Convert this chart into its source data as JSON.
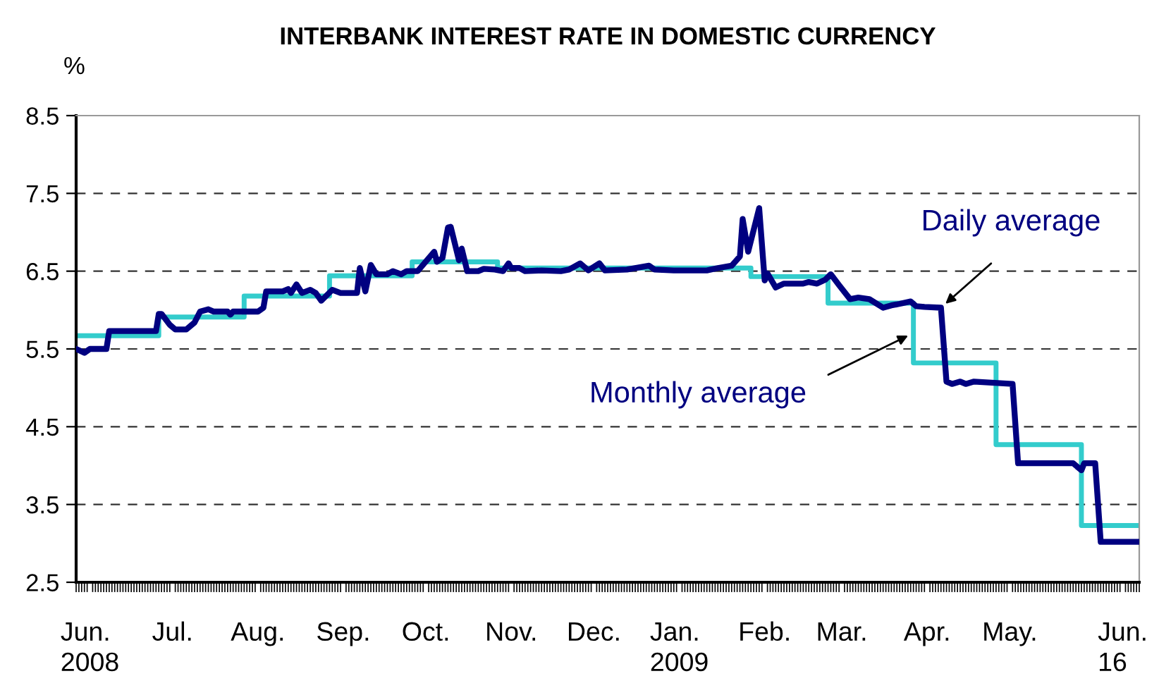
{
  "chart_data": {
    "type": "line",
    "title": "INTERBANK INTEREST RATE IN DOMESTIC CURRENCY",
    "ylabel": "%",
    "xlim": [
      "2008-06-01",
      "2009-06-22"
    ],
    "ylim": [
      2.5,
      8.5
    ],
    "yticks": [
      2.5,
      3.5,
      4.5,
      5.5,
      6.5,
      7.5,
      8.5
    ],
    "xticks": [
      {
        "value": "2008-06-06",
        "label": "Jun.\n2008"
      },
      {
        "value": "2008-07-06",
        "label": "Jul."
      },
      {
        "value": "2008-08-06",
        "label": "Aug."
      },
      {
        "value": "2008-09-06",
        "label": "Sep."
      },
      {
        "value": "2008-10-06",
        "label": "Oct."
      },
      {
        "value": "2008-11-06",
        "label": "Nov."
      },
      {
        "value": "2008-12-06",
        "label": "Dec."
      },
      {
        "value": "2009-01-06",
        "label": "Jan.\n2009"
      },
      {
        "value": "2009-02-06",
        "label": "Feb."
      },
      {
        "value": "2009-03-06",
        "label": "Mar."
      },
      {
        "value": "2009-04-06",
        "label": "Apr."
      },
      {
        "value": "2009-05-06",
        "label": "May."
      },
      {
        "value": "2009-06-16",
        "label": "Jun.\n16"
      }
    ],
    "grid": "y",
    "legend": false,
    "series": [
      {
        "name": "Monthly average",
        "type": "step",
        "color": "#33cccc",
        "x": [
          "2008-06-01",
          "2008-07-01",
          "2008-08-01",
          "2008-09-01",
          "2008-10-01",
          "2008-11-01",
          "2008-12-01",
          "2009-01-01",
          "2009-02-01",
          "2009-03-01",
          "2009-04-01",
          "2009-05-01",
          "2009-06-01",
          "2009-06-22"
        ],
        "values": [
          5.67,
          5.91,
          6.18,
          6.44,
          6.62,
          6.54,
          6.54,
          6.54,
          6.43,
          6.09,
          5.32,
          4.27,
          3.23,
          3.23
        ]
      },
      {
        "name": "Daily average",
        "color": "#000080",
        "x": [
          "2008-06-01",
          "2008-06-04",
          "2008-06-06",
          "2008-06-12",
          "2008-06-13",
          "2008-06-30",
          "2008-07-01",
          "2008-07-02",
          "2008-07-05",
          "2008-07-07",
          "2008-07-11",
          "2008-07-14",
          "2008-07-16",
          "2008-07-19",
          "2008-07-21",
          "2008-07-26",
          "2008-07-27",
          "2008-07-28",
          "2008-08-06",
          "2008-08-08",
          "2008-08-09",
          "2008-08-15",
          "2008-08-17",
          "2008-08-18",
          "2008-08-20",
          "2008-08-22",
          "2008-08-25",
          "2008-08-27",
          "2008-08-29",
          "2008-09-02",
          "2008-09-05",
          "2008-09-11",
          "2008-09-12",
          "2008-09-14",
          "2008-09-16",
          "2008-09-18",
          "2008-09-22",
          "2008-09-24",
          "2008-09-27",
          "2008-09-29",
          "2008-10-03",
          "2008-10-09",
          "2008-10-10",
          "2008-10-12",
          "2008-10-14",
          "2008-10-15",
          "2008-10-18",
          "2008-10-19",
          "2008-10-21",
          "2008-10-25",
          "2008-10-27",
          "2008-10-31",
          "2008-11-03",
          "2008-11-05",
          "2008-11-06",
          "2008-11-09",
          "2008-11-11",
          "2008-11-17",
          "2008-11-24",
          "2008-11-27",
          "2008-12-01",
          "2008-12-04",
          "2008-12-08",
          "2008-12-10",
          "2008-12-18",
          "2008-12-26",
          "2008-12-28",
          "2009-01-04",
          "2009-01-16",
          "2009-01-20",
          "2009-01-25",
          "2009-01-28",
          "2009-01-29",
          "2009-01-31",
          "2009-02-04",
          "2009-02-06",
          "2009-02-07",
          "2009-02-10",
          "2009-02-13",
          "2009-02-20",
          "2009-02-22",
          "2009-02-25",
          "2009-02-28",
          "2009-03-02",
          "2009-03-05",
          "2009-03-09",
          "2009-03-12",
          "2009-03-16",
          "2009-03-21",
          "2009-03-24",
          "2009-03-27",
          "2009-03-31",
          "2009-04-02",
          "2009-04-05",
          "2009-04-11",
          "2009-04-13",
          "2009-04-15",
          "2009-04-18",
          "2009-04-20",
          "2009-04-23",
          "2009-05-07",
          "2009-05-09",
          "2009-05-29",
          "2009-06-01",
          "2009-06-02",
          "2009-06-06",
          "2009-06-08",
          "2009-06-22"
        ],
        "values": [
          5.5,
          5.45,
          5.5,
          5.5,
          5.73,
          5.73,
          5.95,
          5.95,
          5.81,
          5.75,
          5.75,
          5.84,
          5.98,
          6.01,
          5.98,
          5.98,
          5.94,
          5.98,
          5.98,
          6.03,
          6.24,
          6.24,
          6.27,
          6.22,
          6.33,
          6.22,
          6.26,
          6.22,
          6.12,
          6.26,
          6.22,
          6.22,
          6.54,
          6.24,
          6.58,
          6.46,
          6.46,
          6.5,
          6.46,
          6.5,
          6.5,
          6.75,
          6.62,
          6.67,
          7.06,
          7.07,
          6.64,
          6.79,
          6.5,
          6.5,
          6.53,
          6.52,
          6.5,
          6.6,
          6.54,
          6.54,
          6.5,
          6.51,
          6.5,
          6.52,
          6.6,
          6.51,
          6.6,
          6.51,
          6.52,
          6.57,
          6.52,
          6.51,
          6.51,
          6.54,
          6.57,
          6.69,
          7.17,
          6.75,
          7.31,
          6.38,
          6.47,
          6.29,
          6.34,
          6.34,
          6.36,
          6.34,
          6.39,
          6.46,
          6.32,
          6.14,
          6.16,
          6.14,
          6.03,
          6.06,
          6.08,
          6.11,
          6.05,
          6.04,
          6.03,
          5.08,
          5.05,
          5.08,
          5.05,
          5.08,
          5.05,
          4.03,
          4.03,
          3.94,
          4.03,
          4.03,
          3.02,
          3.02
        ]
      }
    ]
  }
}
